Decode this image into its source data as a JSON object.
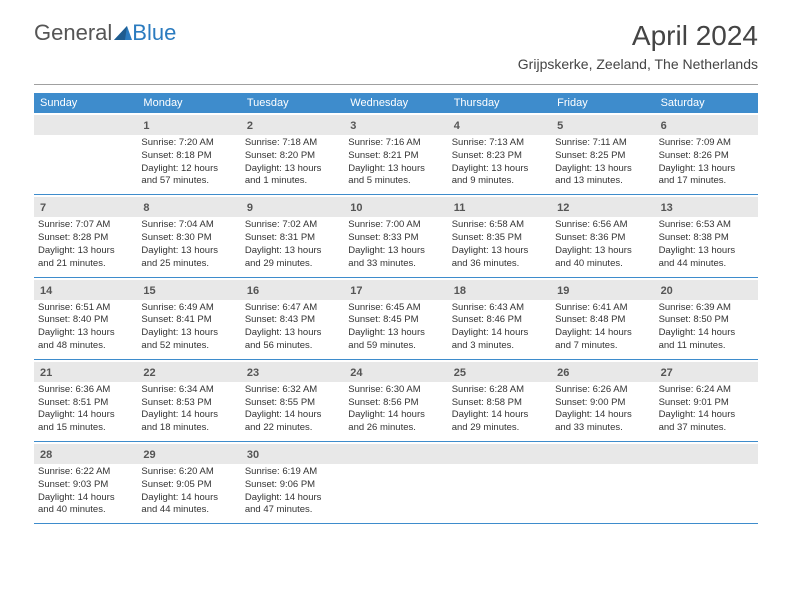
{
  "logo": {
    "text1": "General",
    "text2": "Blue"
  },
  "title": "April 2024",
  "location": "Grijpskerke, Zeeland, The Netherlands",
  "weekdays": [
    "Sunday",
    "Monday",
    "Tuesday",
    "Wednesday",
    "Thursday",
    "Friday",
    "Saturday"
  ],
  "colors": {
    "header_bg": "#3e8ccc",
    "daynum_bg": "#e8e8e8",
    "border": "#3e8ccc",
    "text": "#333333"
  },
  "weeks": [
    [
      {
        "num": "",
        "sunrise": "",
        "sunset": "",
        "daylight1": "",
        "daylight2": ""
      },
      {
        "num": "1",
        "sunrise": "Sunrise: 7:20 AM",
        "sunset": "Sunset: 8:18 PM",
        "daylight1": "Daylight: 12 hours",
        "daylight2": "and 57 minutes."
      },
      {
        "num": "2",
        "sunrise": "Sunrise: 7:18 AM",
        "sunset": "Sunset: 8:20 PM",
        "daylight1": "Daylight: 13 hours",
        "daylight2": "and 1 minutes."
      },
      {
        "num": "3",
        "sunrise": "Sunrise: 7:16 AM",
        "sunset": "Sunset: 8:21 PM",
        "daylight1": "Daylight: 13 hours",
        "daylight2": "and 5 minutes."
      },
      {
        "num": "4",
        "sunrise": "Sunrise: 7:13 AM",
        "sunset": "Sunset: 8:23 PM",
        "daylight1": "Daylight: 13 hours",
        "daylight2": "and 9 minutes."
      },
      {
        "num": "5",
        "sunrise": "Sunrise: 7:11 AM",
        "sunset": "Sunset: 8:25 PM",
        "daylight1": "Daylight: 13 hours",
        "daylight2": "and 13 minutes."
      },
      {
        "num": "6",
        "sunrise": "Sunrise: 7:09 AM",
        "sunset": "Sunset: 8:26 PM",
        "daylight1": "Daylight: 13 hours",
        "daylight2": "and 17 minutes."
      }
    ],
    [
      {
        "num": "7",
        "sunrise": "Sunrise: 7:07 AM",
        "sunset": "Sunset: 8:28 PM",
        "daylight1": "Daylight: 13 hours",
        "daylight2": "and 21 minutes."
      },
      {
        "num": "8",
        "sunrise": "Sunrise: 7:04 AM",
        "sunset": "Sunset: 8:30 PM",
        "daylight1": "Daylight: 13 hours",
        "daylight2": "and 25 minutes."
      },
      {
        "num": "9",
        "sunrise": "Sunrise: 7:02 AM",
        "sunset": "Sunset: 8:31 PM",
        "daylight1": "Daylight: 13 hours",
        "daylight2": "and 29 minutes."
      },
      {
        "num": "10",
        "sunrise": "Sunrise: 7:00 AM",
        "sunset": "Sunset: 8:33 PM",
        "daylight1": "Daylight: 13 hours",
        "daylight2": "and 33 minutes."
      },
      {
        "num": "11",
        "sunrise": "Sunrise: 6:58 AM",
        "sunset": "Sunset: 8:35 PM",
        "daylight1": "Daylight: 13 hours",
        "daylight2": "and 36 minutes."
      },
      {
        "num": "12",
        "sunrise": "Sunrise: 6:56 AM",
        "sunset": "Sunset: 8:36 PM",
        "daylight1": "Daylight: 13 hours",
        "daylight2": "and 40 minutes."
      },
      {
        "num": "13",
        "sunrise": "Sunrise: 6:53 AM",
        "sunset": "Sunset: 8:38 PM",
        "daylight1": "Daylight: 13 hours",
        "daylight2": "and 44 minutes."
      }
    ],
    [
      {
        "num": "14",
        "sunrise": "Sunrise: 6:51 AM",
        "sunset": "Sunset: 8:40 PM",
        "daylight1": "Daylight: 13 hours",
        "daylight2": "and 48 minutes."
      },
      {
        "num": "15",
        "sunrise": "Sunrise: 6:49 AM",
        "sunset": "Sunset: 8:41 PM",
        "daylight1": "Daylight: 13 hours",
        "daylight2": "and 52 minutes."
      },
      {
        "num": "16",
        "sunrise": "Sunrise: 6:47 AM",
        "sunset": "Sunset: 8:43 PM",
        "daylight1": "Daylight: 13 hours",
        "daylight2": "and 56 minutes."
      },
      {
        "num": "17",
        "sunrise": "Sunrise: 6:45 AM",
        "sunset": "Sunset: 8:45 PM",
        "daylight1": "Daylight: 13 hours",
        "daylight2": "and 59 minutes."
      },
      {
        "num": "18",
        "sunrise": "Sunrise: 6:43 AM",
        "sunset": "Sunset: 8:46 PM",
        "daylight1": "Daylight: 14 hours",
        "daylight2": "and 3 minutes."
      },
      {
        "num": "19",
        "sunrise": "Sunrise: 6:41 AM",
        "sunset": "Sunset: 8:48 PM",
        "daylight1": "Daylight: 14 hours",
        "daylight2": "and 7 minutes."
      },
      {
        "num": "20",
        "sunrise": "Sunrise: 6:39 AM",
        "sunset": "Sunset: 8:50 PM",
        "daylight1": "Daylight: 14 hours",
        "daylight2": "and 11 minutes."
      }
    ],
    [
      {
        "num": "21",
        "sunrise": "Sunrise: 6:36 AM",
        "sunset": "Sunset: 8:51 PM",
        "daylight1": "Daylight: 14 hours",
        "daylight2": "and 15 minutes."
      },
      {
        "num": "22",
        "sunrise": "Sunrise: 6:34 AM",
        "sunset": "Sunset: 8:53 PM",
        "daylight1": "Daylight: 14 hours",
        "daylight2": "and 18 minutes."
      },
      {
        "num": "23",
        "sunrise": "Sunrise: 6:32 AM",
        "sunset": "Sunset: 8:55 PM",
        "daylight1": "Daylight: 14 hours",
        "daylight2": "and 22 minutes."
      },
      {
        "num": "24",
        "sunrise": "Sunrise: 6:30 AM",
        "sunset": "Sunset: 8:56 PM",
        "daylight1": "Daylight: 14 hours",
        "daylight2": "and 26 minutes."
      },
      {
        "num": "25",
        "sunrise": "Sunrise: 6:28 AM",
        "sunset": "Sunset: 8:58 PM",
        "daylight1": "Daylight: 14 hours",
        "daylight2": "and 29 minutes."
      },
      {
        "num": "26",
        "sunrise": "Sunrise: 6:26 AM",
        "sunset": "Sunset: 9:00 PM",
        "daylight1": "Daylight: 14 hours",
        "daylight2": "and 33 minutes."
      },
      {
        "num": "27",
        "sunrise": "Sunrise: 6:24 AM",
        "sunset": "Sunset: 9:01 PM",
        "daylight1": "Daylight: 14 hours",
        "daylight2": "and 37 minutes."
      }
    ],
    [
      {
        "num": "28",
        "sunrise": "Sunrise: 6:22 AM",
        "sunset": "Sunset: 9:03 PM",
        "daylight1": "Daylight: 14 hours",
        "daylight2": "and 40 minutes."
      },
      {
        "num": "29",
        "sunrise": "Sunrise: 6:20 AM",
        "sunset": "Sunset: 9:05 PM",
        "daylight1": "Daylight: 14 hours",
        "daylight2": "and 44 minutes."
      },
      {
        "num": "30",
        "sunrise": "Sunrise: 6:19 AM",
        "sunset": "Sunset: 9:06 PM",
        "daylight1": "Daylight: 14 hours",
        "daylight2": "and 47 minutes."
      },
      {
        "num": "",
        "sunrise": "",
        "sunset": "",
        "daylight1": "",
        "daylight2": ""
      },
      {
        "num": "",
        "sunrise": "",
        "sunset": "",
        "daylight1": "",
        "daylight2": ""
      },
      {
        "num": "",
        "sunrise": "",
        "sunset": "",
        "daylight1": "",
        "daylight2": ""
      },
      {
        "num": "",
        "sunrise": "",
        "sunset": "",
        "daylight1": "",
        "daylight2": ""
      }
    ]
  ]
}
